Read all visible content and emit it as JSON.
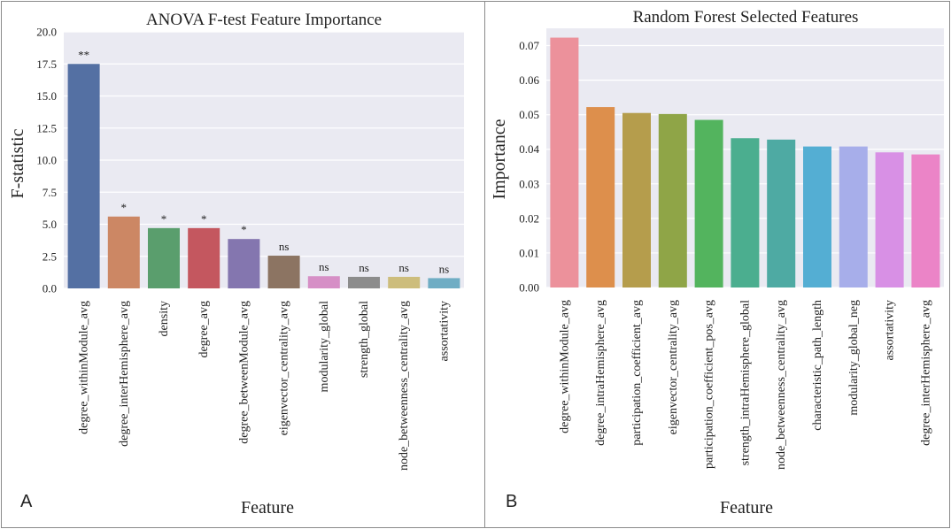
{
  "chart_data": [
    {
      "type": "bar",
      "title": "ANOVA F-test Feature Importance",
      "xlabel": "Feature",
      "ylabel": "F-statistic",
      "panel_label": "A",
      "ylim": [
        0,
        20
      ],
      "yticks": [
        "0.0",
        "2.5",
        "5.0",
        "7.5",
        "10.0",
        "12.5",
        "15.0",
        "17.5",
        "20.0"
      ],
      "grid": true,
      "categories": [
        "degree_withinModule_avg",
        "degree_interHemisphere_avg",
        "density",
        "degree_avg",
        "degree_betweenModule_avg",
        "eigenvector_centrality_avg",
        "modularity_global",
        "strength_global",
        "node_betweenness_centrality_avg",
        "assortativity"
      ],
      "values": [
        17.5,
        5.6,
        4.7,
        4.7,
        3.85,
        2.55,
        0.95,
        0.9,
        0.9,
        0.8
      ],
      "annotations": [
        "**",
        "*",
        "*",
        "*",
        "*",
        "ns",
        "ns",
        "ns",
        "ns",
        "ns"
      ],
      "colors": [
        "#5470a3",
        "#cc8764",
        "#5a9e6d",
        "#c4575f",
        "#8476af",
        "#8c7462",
        "#d68fc6",
        "#8c8c8c",
        "#cdbd7c",
        "#6fadc4"
      ]
    },
    {
      "type": "bar",
      "title": "Random Forest Selected Features",
      "xlabel": "Feature",
      "ylabel": "Importance",
      "panel_label": "B",
      "ylim": [
        0,
        0.075
      ],
      "yticks": [
        "0.00",
        "0.01",
        "0.02",
        "0.03",
        "0.04",
        "0.05",
        "0.06",
        "0.07"
      ],
      "grid": true,
      "categories": [
        "degree_withinModule_avg",
        "degree_intraHemisphere_avg",
        "participation_coefficient_avg",
        "eigenvector_centrality_avg",
        "participation_coefficient_pos_avg",
        "strength_intraHemisphere_global",
        "node_betweenness_centrality_avg",
        "characteristic_path_length",
        "modularity_global_neg",
        "assortativity",
        "degree_interHemisphere_avg"
      ],
      "values": [
        0.0723,
        0.0522,
        0.0505,
        0.0502,
        0.0485,
        0.0432,
        0.0428,
        0.0408,
        0.0408,
        0.0391,
        0.0385
      ],
      "colors": [
        "#ec919b",
        "#dd8f4c",
        "#b59d4c",
        "#8fa547",
        "#53b45e",
        "#4bae8f",
        "#4eaaa3",
        "#54aed3",
        "#a7aeea",
        "#d890e5",
        "#eb84c7"
      ]
    }
  ]
}
